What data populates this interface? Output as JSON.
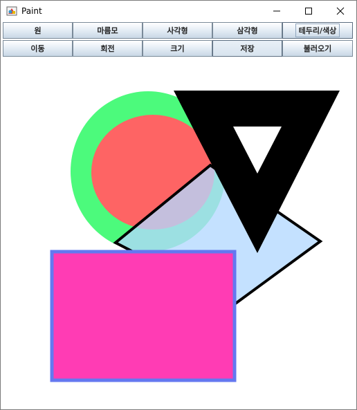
{
  "window": {
    "title": "Paint",
    "icons": {
      "app": "paint-app-icon",
      "minimize": "minimize-icon",
      "maximize": "maximize-icon",
      "close": "close-icon"
    }
  },
  "toolbar": {
    "row1": [
      {
        "label": "원"
      },
      {
        "label": "마름모"
      },
      {
        "label": "사각형"
      },
      {
        "label": "삼각형"
      },
      {
        "label": "테두리/색상"
      }
    ],
    "row2": [
      {
        "label": "이동"
      },
      {
        "label": "회전"
      },
      {
        "label": "크기"
      },
      {
        "label": "저장"
      },
      {
        "label": "불러오기"
      }
    ]
  },
  "canvas": {
    "shapes": [
      {
        "type": "ellipse",
        "name": "circle",
        "fill": "#4cfa7c",
        "inner_fill": "#fe6464"
      },
      {
        "type": "diamond",
        "name": "diamond",
        "fill": "#b4d8ff",
        "stroke": "#000000"
      },
      {
        "type": "triangle",
        "name": "triangle",
        "fill": "#000000",
        "hole": "#ffffff"
      },
      {
        "type": "rectangle",
        "name": "rectangle",
        "fill": "#ff3cb4",
        "stroke": "#6478f0"
      }
    ]
  }
}
